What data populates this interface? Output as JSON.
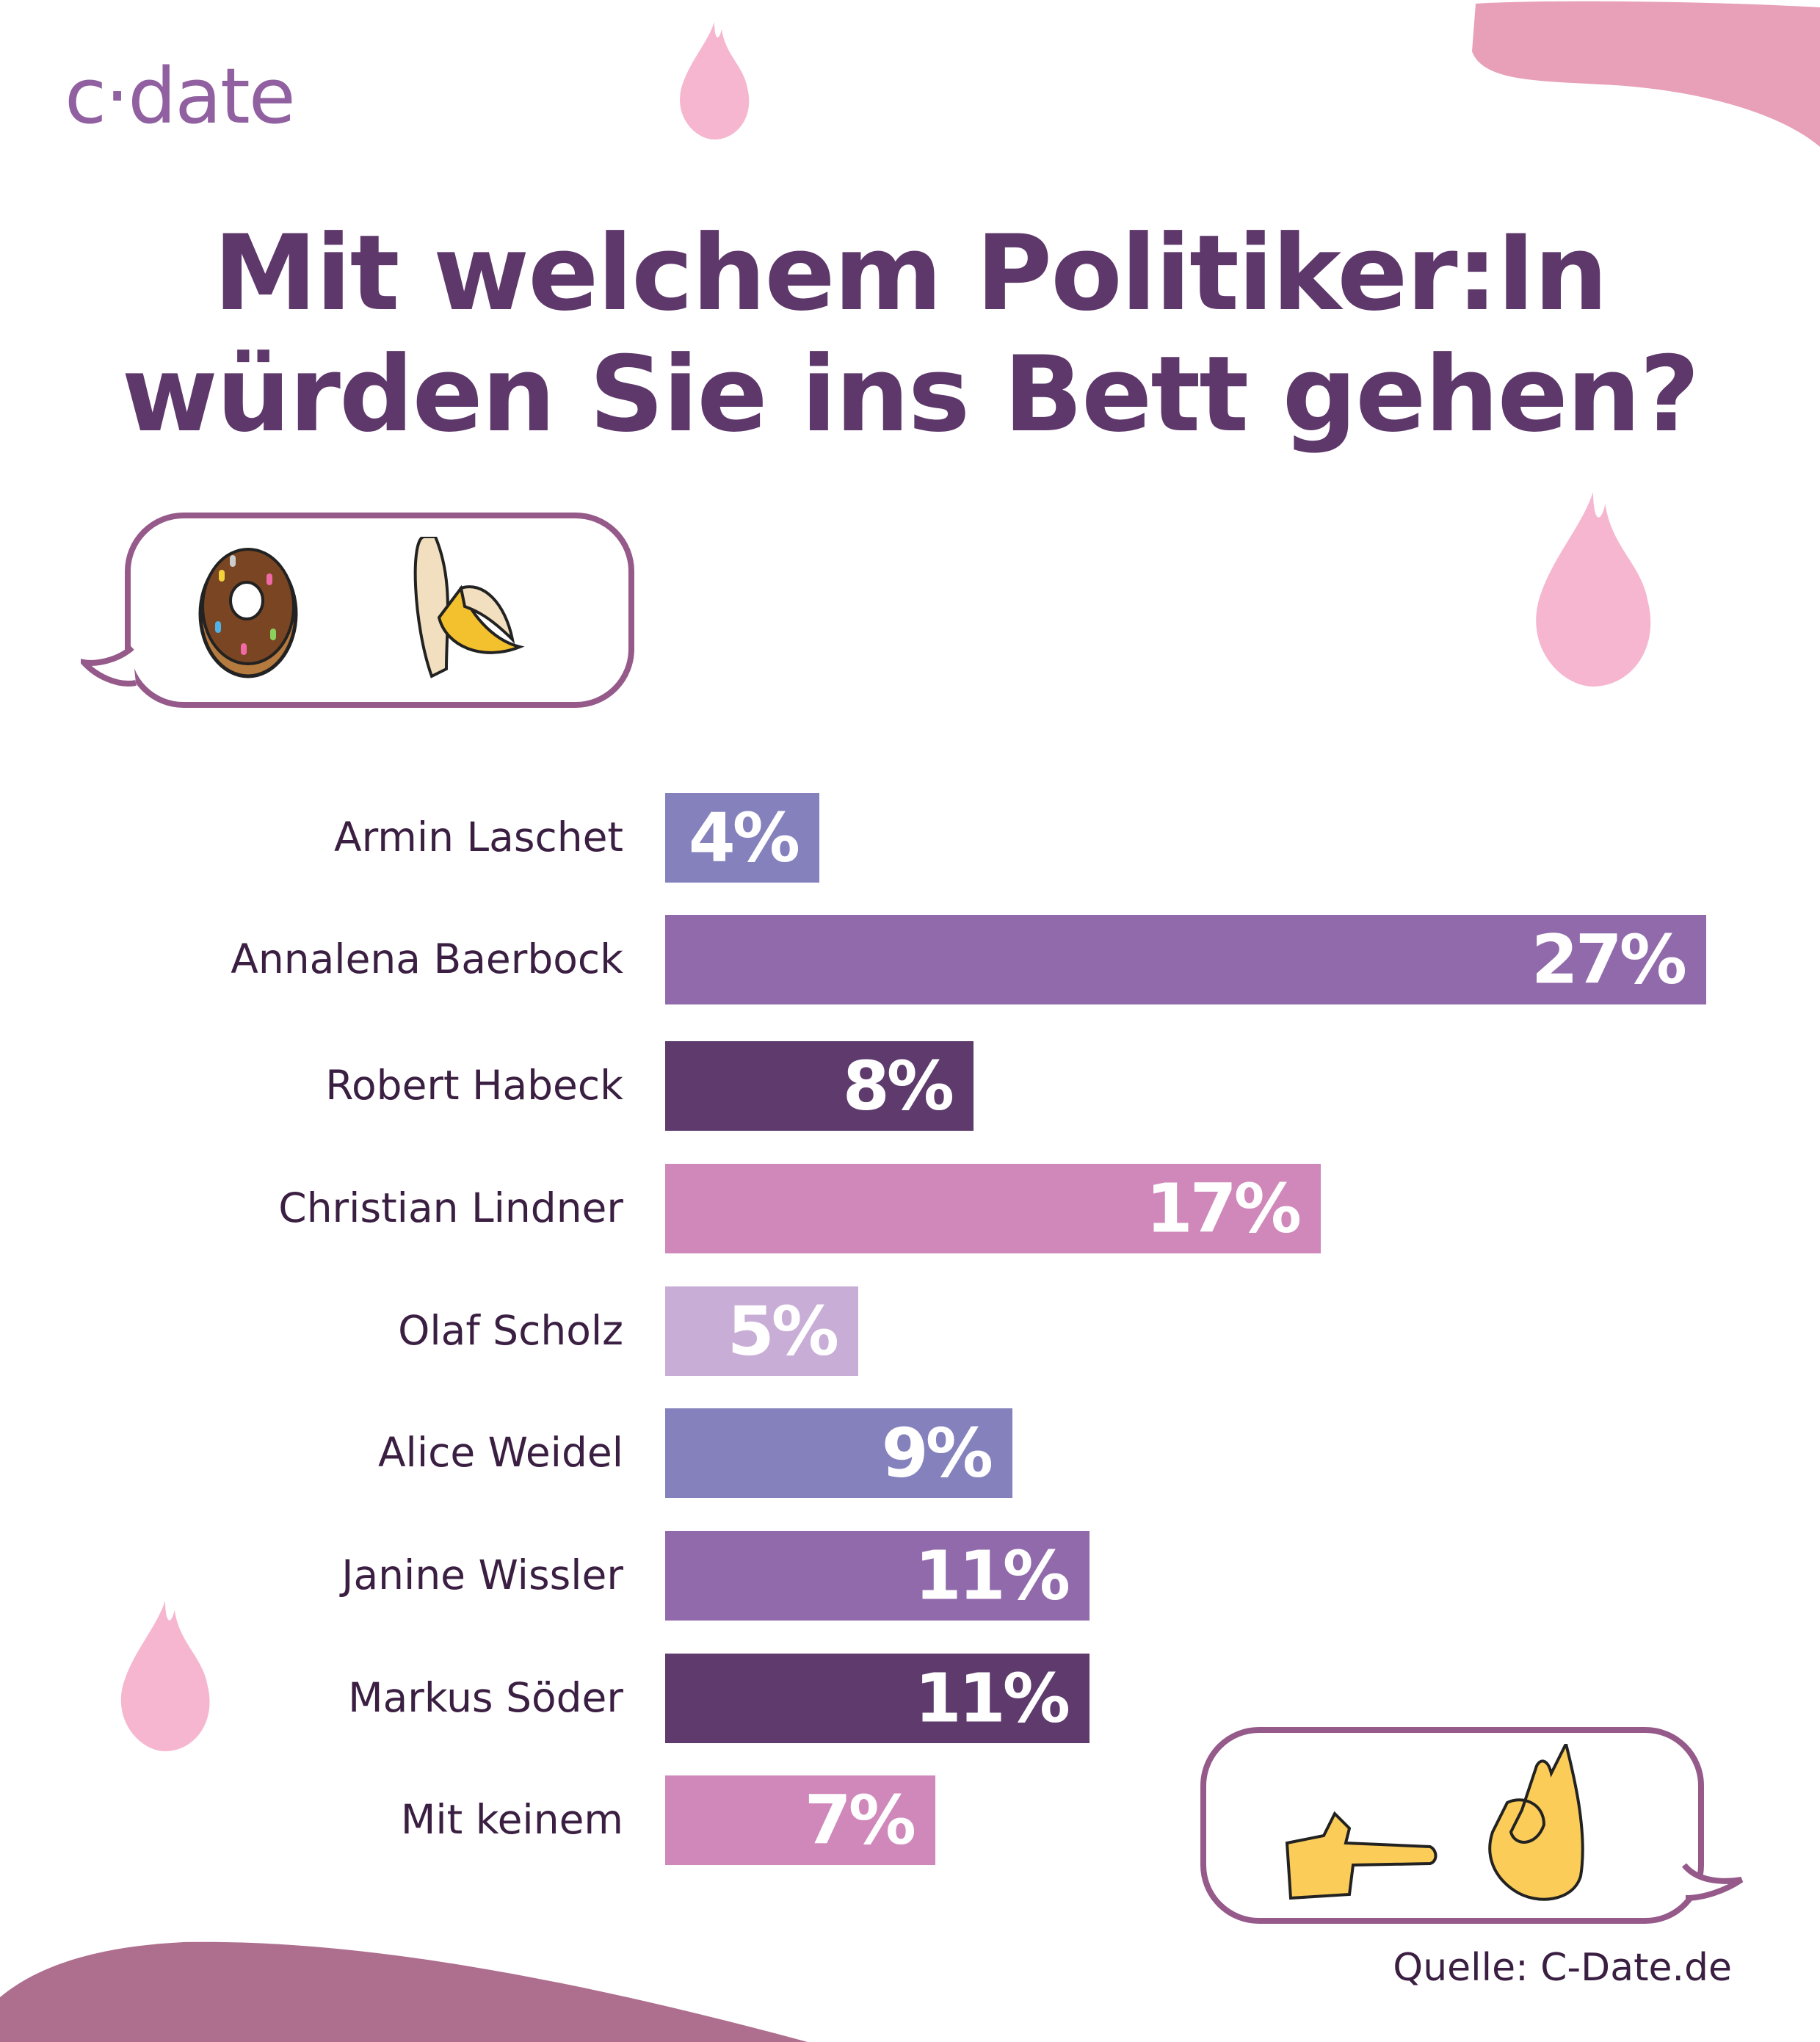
{
  "logo": "c·date",
  "title_line1": "Mit welchem Politiker:In",
  "title_line2": "würden Sie ins Bett gehen?",
  "source": "Quelle: C-Date.de",
  "decorations": {
    "top_bubble_icons": [
      "donut-icon",
      "banana-icon"
    ],
    "bottom_bubble_icons": [
      "pointing-hand-icon",
      "ok-hand-icon"
    ],
    "flames": [
      "flame-icon",
      "flame-icon",
      "flame-icon"
    ]
  },
  "chart_data": {
    "type": "bar",
    "orientation": "horizontal",
    "title": "Mit welchem Politiker:In würden Sie ins Bett gehen?",
    "xlabel": "",
    "ylabel": "",
    "xlim": [
      0,
      27
    ],
    "categories": [
      "Armin Laschet",
      "Annalena Baerbock",
      "Robert Habeck",
      "Christian Lindner",
      "Olaf Scholz",
      "Alice Weidel",
      "Janine Wissler",
      "Markus Söder",
      "Mit keinem"
    ],
    "values": [
      4,
      27,
      8,
      17,
      5,
      9,
      11,
      11,
      7
    ],
    "labels": [
      "4%",
      "27%",
      "8%",
      "17%",
      "5%",
      "9%",
      "11%",
      "11%",
      "7%"
    ],
    "colors": [
      "#8581bd",
      "#916aab",
      "#5e3a6d",
      "#d088bb",
      "#c8aed6",
      "#8581bd",
      "#916aab",
      "#5e3a6d",
      "#d088bb"
    ]
  }
}
